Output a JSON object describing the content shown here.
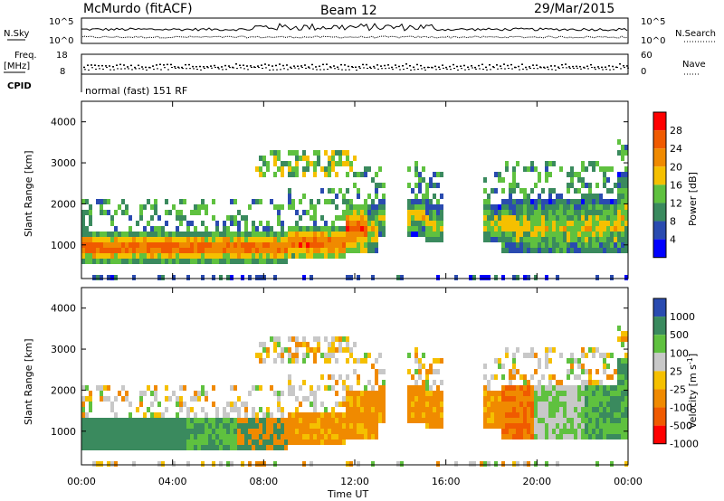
{
  "header": {
    "station": "McMurdo (fitACF)",
    "beam": "Beam 12",
    "date": "29/Mar/2015",
    "cpid_text": "normal (fast) 151 RF"
  },
  "side_labels": {
    "nsky": "N.Sky",
    "nsearch": "N.Search",
    "freq_line1": "Freq.",
    "freq_line2": "[MHz]",
    "nave": "Nave",
    "cpid": "CPID",
    "noise_top_left": "10^5",
    "noise_bottom_left": "10^0",
    "noise_top_right": "10^5",
    "noise_bottom_right": "10^0",
    "freq_top": "18",
    "freq_bottom": "8",
    "nave_top": "60",
    "nave_bottom": "0"
  },
  "colors": {
    "power": [
      "#0000ff",
      "#2a4bb0",
      "#3a8a5e",
      "#5fc13f",
      "#f5c000",
      "#f08a00",
      "#f05a00",
      "#ff0000"
    ],
    "velocity": [
      "#ff0000",
      "#f05a00",
      "#f08a00",
      "#f5c000",
      "#c8c8c8",
      "#5fc13f",
      "#3a8a5e",
      "#2a4bb0"
    ]
  },
  "chart_data": [
    {
      "type": "heatmap",
      "name": "power",
      "ylabel": "Slant Range [km]",
      "xlabel": "",
      "x_ticks": [
        "00:00",
        "04:00",
        "08:00",
        "12:00",
        "16:00",
        "20:00",
        "00:00"
      ],
      "y_ticks": [
        "1000",
        "2000",
        "3000",
        "4000"
      ],
      "ylim": [
        180,
        4500
      ],
      "colorbar": {
        "label": "Power [dB]",
        "ticks": [
          "4",
          "8",
          "12",
          "16",
          "20",
          "24",
          "28"
        ],
        "range": [
          0,
          30
        ]
      }
    },
    {
      "type": "heatmap",
      "name": "velocity",
      "ylabel": "Slant Range [km]",
      "xlabel": "Time UT",
      "x_ticks": [
        "00:00",
        "04:00",
        "08:00",
        "12:00",
        "16:00",
        "20:00",
        "00:00"
      ],
      "y_ticks": [
        "1000",
        "2000",
        "3000",
        "4000"
      ],
      "ylim": [
        180,
        4500
      ],
      "colorbar": {
        "label": "Velocity [m s^-1]",
        "ticks": [
          "1000",
          "500",
          "100",
          "25",
          "-25",
          "-100",
          "-500",
          "-1000"
        ],
        "range": [
          -1000,
          1000
        ]
      }
    }
  ]
}
